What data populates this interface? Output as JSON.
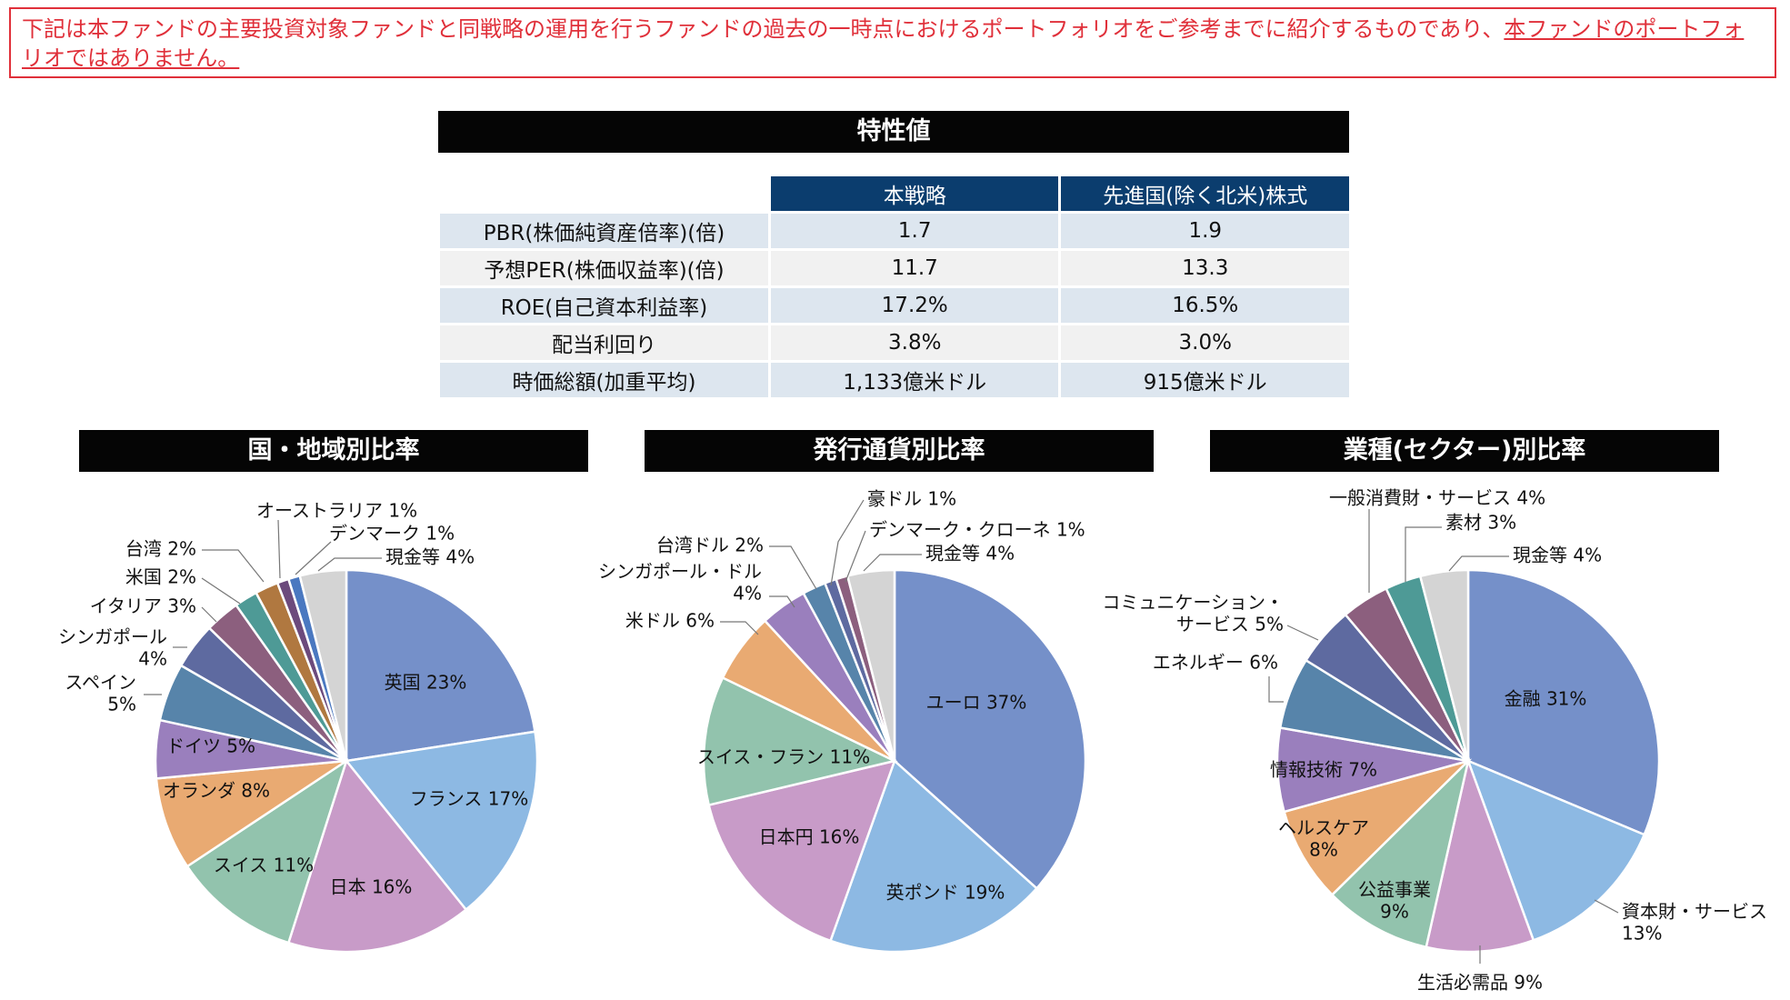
{
  "notice": {
    "text_normal": "下記は本ファンドの主要投資対象ファンドと同戦略の運用を行うファンドの過去の一時点におけるポートフォリオをご参考までに紹介するものであり、",
    "text_underlined": "本ファンドのポートフォリオではありません。",
    "color": "#e0303a"
  },
  "characteristics": {
    "title": "特性値",
    "columns": [
      "本戦略",
      "先進国(除く北米)株式"
    ],
    "rows": [
      {
        "label": "PBR(株価純資産倍率)(倍)",
        "values": [
          "1.7",
          "1.9"
        ]
      },
      {
        "label": "予想PER(株価収益率)(倍)",
        "values": [
          "11.7",
          "13.3"
        ]
      },
      {
        "label": "ROE(自己資本利益率)",
        "values": [
          "17.2%",
          "16.5%"
        ]
      },
      {
        "label": "配当利回り",
        "values": [
          "3.8%",
          "3.0%"
        ]
      },
      {
        "label": "時価総額(加重平均)",
        "values": [
          "1,133億米ドル",
          "915億米ドル"
        ]
      }
    ]
  },
  "chart_data": [
    {
      "type": "pie",
      "title": "国・地域別比率",
      "slices": [
        {
          "label": "英国",
          "value": 23,
          "color": "#7590c9"
        },
        {
          "label": "フランス",
          "value": 17,
          "color": "#8db9e3"
        },
        {
          "label": "日本",
          "value": 16,
          "color": "#c89bc8"
        },
        {
          "label": "スイス",
          "value": 11,
          "color": "#92c3ad"
        },
        {
          "label": "オランダ",
          "value": 8,
          "color": "#e9aa72"
        },
        {
          "label": "ドイツ",
          "value": 5,
          "color": "#9a7fbd"
        },
        {
          "label": "スペイン",
          "value": 5,
          "color": "#5784aa"
        },
        {
          "label": "シンガポール",
          "value": 4,
          "color": "#5e6aa0"
        },
        {
          "label": "イタリア",
          "value": 3,
          "color": "#8c5f7e"
        },
        {
          "label": "米国",
          "value": 2,
          "color": "#4e9a96"
        },
        {
          "label": "台湾",
          "value": 2,
          "color": "#b07840"
        },
        {
          "label": "オーストラリア",
          "value": 1,
          "color": "#6c4a7c"
        },
        {
          "label": "デンマーク",
          "value": 1,
          "color": "#4a78c0"
        },
        {
          "label": "現金等",
          "value": 4,
          "color": "#d4d4d4"
        }
      ]
    },
    {
      "type": "pie",
      "title": "発行通貨別比率",
      "slices": [
        {
          "label": "ユーロ",
          "value": 37,
          "color": "#7590c9"
        },
        {
          "label": "英ポンド",
          "value": 19,
          "color": "#8db9e3"
        },
        {
          "label": "日本円",
          "value": 16,
          "color": "#c89bc8"
        },
        {
          "label": "スイス・フラン",
          "value": 11,
          "color": "#92c3ad"
        },
        {
          "label": "米ドル",
          "value": 6,
          "color": "#e9aa72"
        },
        {
          "label": "シンガポール・ドル",
          "value": 4,
          "color": "#9a7fbd"
        },
        {
          "label": "台湾ドル",
          "value": 2,
          "color": "#5784aa"
        },
        {
          "label": "豪ドル",
          "value": 1,
          "color": "#5e6aa0"
        },
        {
          "label": "デンマーク・クローネ",
          "value": 1,
          "color": "#8c5f7e"
        },
        {
          "label": "現金等",
          "value": 4,
          "color": "#d4d4d4"
        }
      ]
    },
    {
      "type": "pie",
      "title": "業種(セクター)別比率",
      "slices": [
        {
          "label": "金融",
          "value": 31,
          "color": "#7590c9"
        },
        {
          "label": "資本財・サービス",
          "value": 13,
          "color": "#8db9e3"
        },
        {
          "label": "生活必需品",
          "value": 9,
          "color": "#c89bc8"
        },
        {
          "label": "公益事業",
          "value": 9,
          "color": "#92c3ad"
        },
        {
          "label": "ヘルスケア",
          "value": 8,
          "color": "#e9aa72"
        },
        {
          "label": "情報技術",
          "value": 7,
          "color": "#9a7fbd"
        },
        {
          "label": "エネルギー",
          "value": 6,
          "color": "#5784aa"
        },
        {
          "label": "コミュニケーション・サービス",
          "value": 5,
          "color": "#5e6aa0"
        },
        {
          "label": "一般消費財・サービス",
          "value": 4,
          "color": "#8c5f7e"
        },
        {
          "label": "素材",
          "value": 3,
          "color": "#4e9a96"
        },
        {
          "label": "現金等",
          "value": 4,
          "color": "#d4d4d4"
        }
      ]
    }
  ]
}
